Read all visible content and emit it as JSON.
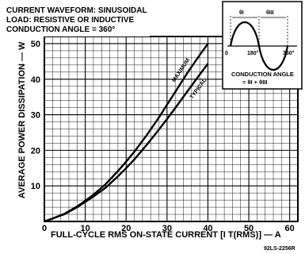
{
  "chart_data": {
    "type": "line",
    "title_lines": [
      "CURRENT WAVEFORM:  SINUSOIDAL",
      "LOAD:  RESISTIVE  OR  INDUCTIVE",
      "CONDUCTION  ANGLE  =  360°"
    ],
    "xlabel": "FULL-CYCLE RMS ON-STATE CURRENT [I T(RMS)] — A",
    "ylabel": "AVERAGE POWER DISSIPATION — W",
    "xlim": [
      0,
      62
    ],
    "ylim": [
      0,
      52
    ],
    "x_ticks": [
      0,
      10,
      20,
      30,
      40,
      50,
      60
    ],
    "y_ticks": [
      10,
      20,
      30,
      40,
      50
    ],
    "grid": true,
    "series": [
      {
        "name": "MAXIMUM",
        "x": [
          0,
          2,
          5,
          8,
          10,
          12,
          15,
          18,
          20,
          22,
          25,
          28,
          30,
          32,
          35,
          38,
          40
        ],
        "y": [
          0,
          0.8,
          2.2,
          4.2,
          5.8,
          7.5,
          10.5,
          14.2,
          16.8,
          19.6,
          24.2,
          29.2,
          32.8,
          36.4,
          41.8,
          46.8,
          50
        ]
      },
      {
        "name": "TYPICAL",
        "x": [
          0,
          2,
          5,
          8,
          10,
          12,
          15,
          18,
          20,
          22,
          25,
          28,
          30,
          32,
          35,
          38,
          40
        ],
        "y": [
          0,
          0.8,
          2.1,
          4.0,
          5.5,
          7.0,
          9.5,
          12.7,
          15.0,
          17.4,
          21.5,
          25.8,
          28.8,
          31.9,
          36.6,
          41.3,
          44.4
        ]
      }
    ],
    "inset": {
      "labels_top": [
        "θI",
        "θIII"
      ],
      "axis_labels": [
        "0",
        "180°",
        "360°"
      ],
      "caption_lines": [
        "CONDUCTION ANGLE",
        "= θI + θIII"
      ]
    },
    "figure_id": "92LS-2256R"
  }
}
